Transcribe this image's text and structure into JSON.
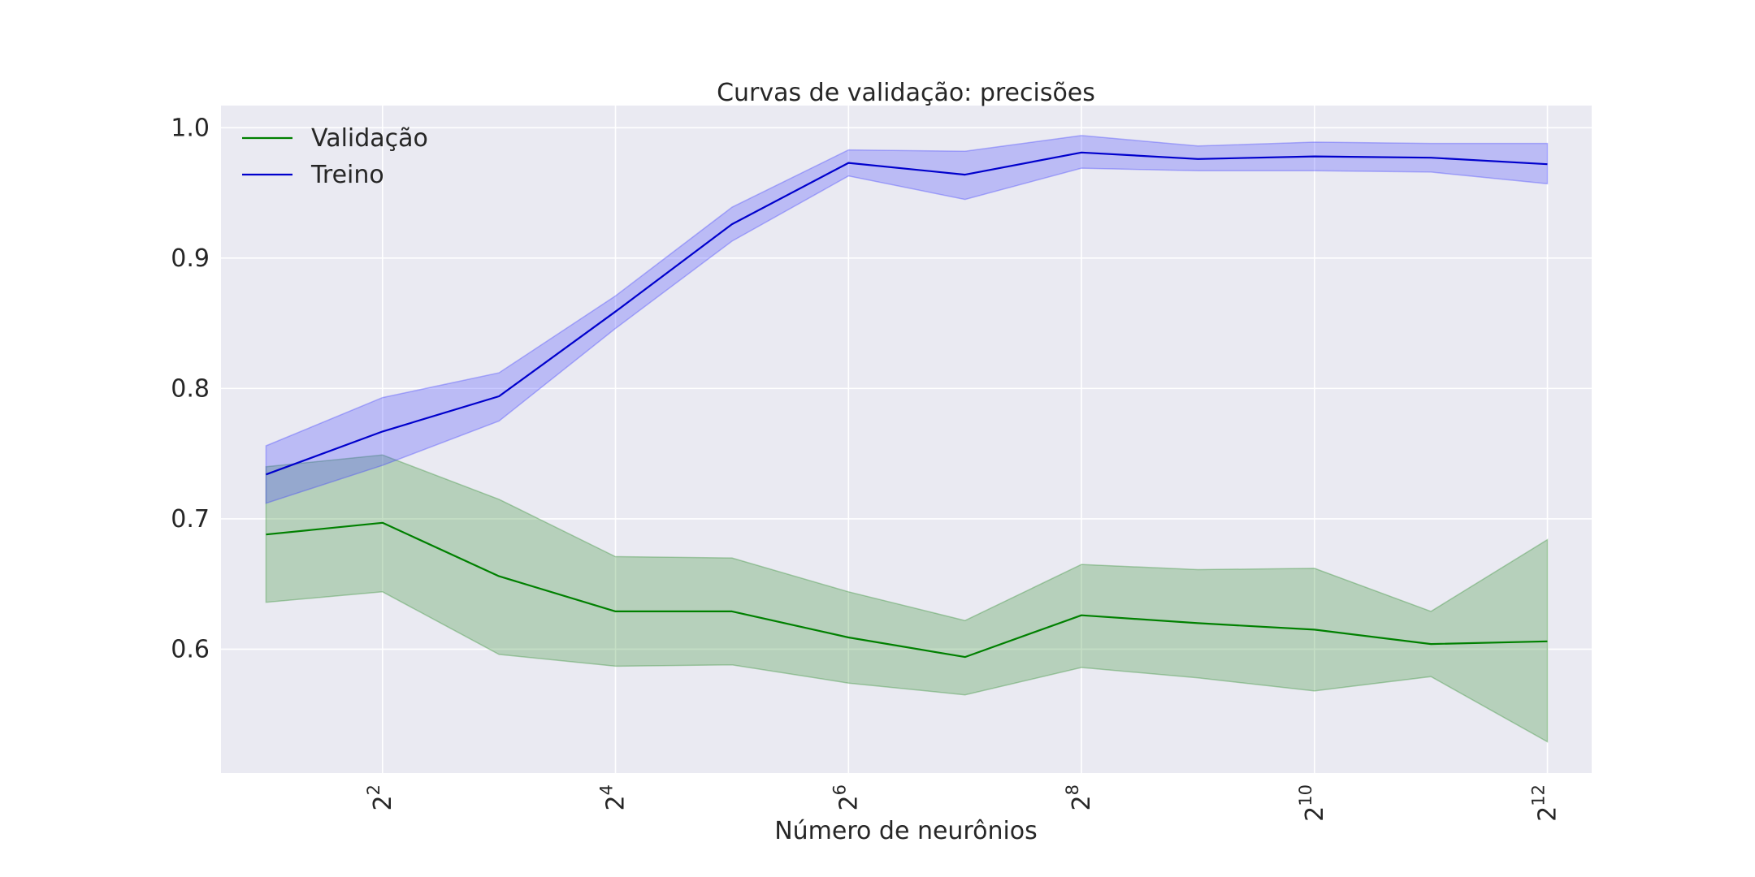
{
  "chart_data": {
    "type": "line",
    "title": "Curvas de validação: precisões",
    "xlabel": "Número de neurônios",
    "ylabel": "",
    "x_scale": "log2",
    "x": [
      2,
      4,
      8,
      16,
      32,
      64,
      128,
      256,
      512,
      1024,
      2048,
      4096
    ],
    "xlim": [
      1.53,
      5330
    ],
    "ylim": [
      0.505,
      1.017
    ],
    "x_ticks": [
      {
        "value": 4,
        "base": "2",
        "exp": "2"
      },
      {
        "value": 16,
        "base": "2",
        "exp": "4"
      },
      {
        "value": 64,
        "base": "2",
        "exp": "6"
      },
      {
        "value": 256,
        "base": "2",
        "exp": "8"
      },
      {
        "value": 1024,
        "base": "2",
        "exp": "10"
      },
      {
        "value": 4096,
        "base": "2",
        "exp": "12"
      }
    ],
    "y_ticks": [
      {
        "value": 0.6,
        "label": "0.6"
      },
      {
        "value": 0.7,
        "label": "0.7"
      },
      {
        "value": 0.8,
        "label": "0.8"
      },
      {
        "value": 0.9,
        "label": "0.9"
      },
      {
        "value": 1.0,
        "label": "1.0"
      }
    ],
    "grid": true,
    "legend_position": "top-left",
    "background_color": "#eaeaf2",
    "series": [
      {
        "name": "Validação",
        "color": "#008000",
        "band_color": "#2e8b2e",
        "values": [
          0.688,
          0.697,
          0.656,
          0.629,
          0.629,
          0.609,
          0.594,
          0.626,
          0.62,
          0.615,
          0.604,
          0.606
        ],
        "lower": [
          0.636,
          0.644,
          0.596,
          0.587,
          0.588,
          0.574,
          0.565,
          0.586,
          0.578,
          0.568,
          0.579,
          0.529
        ],
        "upper": [
          0.74,
          0.749,
          0.715,
          0.671,
          0.67,
          0.644,
          0.622,
          0.665,
          0.661,
          0.662,
          0.629,
          0.684
        ]
      },
      {
        "name": "Treino",
        "color": "#0000cc",
        "band_color": "#4040ff",
        "values": [
          0.734,
          0.767,
          0.794,
          0.859,
          0.926,
          0.973,
          0.964,
          0.981,
          0.976,
          0.978,
          0.977,
          0.972
        ],
        "lower": [
          0.712,
          0.741,
          0.775,
          0.846,
          0.913,
          0.963,
          0.945,
          0.969,
          0.967,
          0.967,
          0.966,
          0.957
        ],
        "upper": [
          0.756,
          0.793,
          0.812,
          0.871,
          0.939,
          0.983,
          0.982,
          0.994,
          0.986,
          0.989,
          0.988,
          0.988
        ]
      }
    ]
  }
}
